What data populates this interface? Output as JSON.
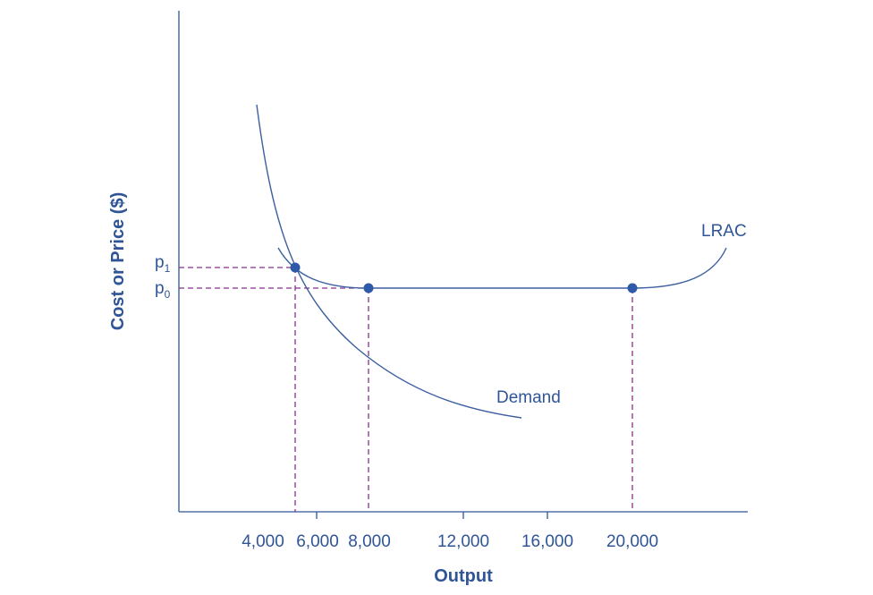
{
  "chart_data": {
    "type": "line",
    "xlabel": "Output",
    "ylabel": "Cost or Price ($)",
    "x_ticks": [
      "4,000",
      "6,000",
      "8,000",
      "12,000",
      "16,000",
      "20,000"
    ],
    "price_labels": [
      {
        "base": "p",
        "sub": "1"
      },
      {
        "base": "p",
        "sub": "0"
      }
    ],
    "series": [
      {
        "name": "LRAC"
      },
      {
        "name": "Demand"
      }
    ],
    "points": [
      {
        "label": "p1 intersection"
      },
      {
        "label": "p0 at 8,000"
      },
      {
        "label": "p0 at 20,000"
      }
    ],
    "colors": {
      "axis": "#2f5597",
      "curve": "#3b5fa0",
      "guide": "#8b2f8f",
      "point": "#2f5aa8"
    }
  }
}
